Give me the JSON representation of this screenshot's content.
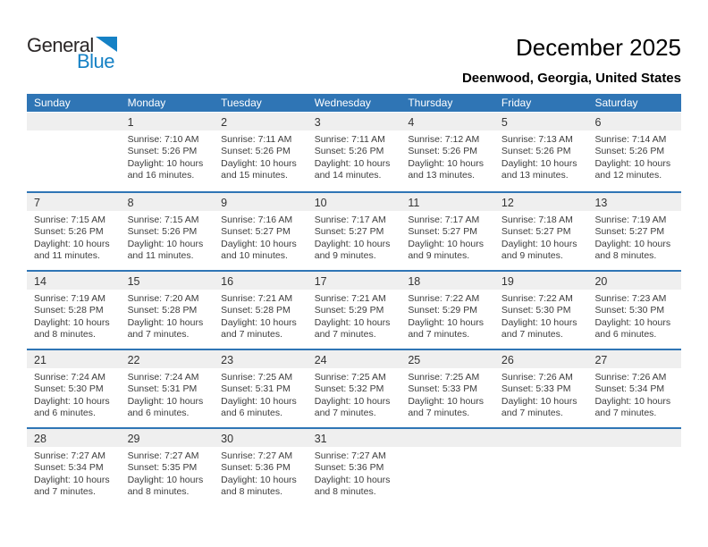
{
  "logo": {
    "general": "General",
    "blue": "Blue",
    "triangle_icon": "blue-flag-triangle"
  },
  "header": {
    "title": "December 2025",
    "subtitle": "Deenwood, Georgia, United States"
  },
  "colors": {
    "header_blue": "#2F75B5",
    "accent_blue": "#1581C5",
    "band_gray": "#EFEFEF",
    "day_number": "#333333",
    "detail_text": "#3D3D3D"
  },
  "weekdays": [
    "Sunday",
    "Monday",
    "Tuesday",
    "Wednesday",
    "Thursday",
    "Friday",
    "Saturday"
  ],
  "weeks": [
    {
      "days": [
        {
          "num": "",
          "lines": [
            "",
            "",
            "",
            ""
          ]
        },
        {
          "num": "1",
          "lines": [
            "Sunrise: 7:10 AM",
            "Sunset: 5:26 PM",
            "Daylight: 10 hours",
            "and 16 minutes."
          ]
        },
        {
          "num": "2",
          "lines": [
            "Sunrise: 7:11 AM",
            "Sunset: 5:26 PM",
            "Daylight: 10 hours",
            "and 15 minutes."
          ]
        },
        {
          "num": "3",
          "lines": [
            "Sunrise: 7:11 AM",
            "Sunset: 5:26 PM",
            "Daylight: 10 hours",
            "and 14 minutes."
          ]
        },
        {
          "num": "4",
          "lines": [
            "Sunrise: 7:12 AM",
            "Sunset: 5:26 PM",
            "Daylight: 10 hours",
            "and 13 minutes."
          ]
        },
        {
          "num": "5",
          "lines": [
            "Sunrise: 7:13 AM",
            "Sunset: 5:26 PM",
            "Daylight: 10 hours",
            "and 13 minutes."
          ]
        },
        {
          "num": "6",
          "lines": [
            "Sunrise: 7:14 AM",
            "Sunset: 5:26 PM",
            "Daylight: 10 hours",
            "and 12 minutes."
          ]
        }
      ]
    },
    {
      "days": [
        {
          "num": "7",
          "lines": [
            "Sunrise: 7:15 AM",
            "Sunset: 5:26 PM",
            "Daylight: 10 hours",
            "and 11 minutes."
          ]
        },
        {
          "num": "8",
          "lines": [
            "Sunrise: 7:15 AM",
            "Sunset: 5:26 PM",
            "Daylight: 10 hours",
            "and 11 minutes."
          ]
        },
        {
          "num": "9",
          "lines": [
            "Sunrise: 7:16 AM",
            "Sunset: 5:27 PM",
            "Daylight: 10 hours",
            "and 10 minutes."
          ]
        },
        {
          "num": "10",
          "lines": [
            "Sunrise: 7:17 AM",
            "Sunset: 5:27 PM",
            "Daylight: 10 hours",
            "and 9 minutes."
          ]
        },
        {
          "num": "11",
          "lines": [
            "Sunrise: 7:17 AM",
            "Sunset: 5:27 PM",
            "Daylight: 10 hours",
            "and 9 minutes."
          ]
        },
        {
          "num": "12",
          "lines": [
            "Sunrise: 7:18 AM",
            "Sunset: 5:27 PM",
            "Daylight: 10 hours",
            "and 9 minutes."
          ]
        },
        {
          "num": "13",
          "lines": [
            "Sunrise: 7:19 AM",
            "Sunset: 5:27 PM",
            "Daylight: 10 hours",
            "and 8 minutes."
          ]
        }
      ]
    },
    {
      "days": [
        {
          "num": "14",
          "lines": [
            "Sunrise: 7:19 AM",
            "Sunset: 5:28 PM",
            "Daylight: 10 hours",
            "and 8 minutes."
          ]
        },
        {
          "num": "15",
          "lines": [
            "Sunrise: 7:20 AM",
            "Sunset: 5:28 PM",
            "Daylight: 10 hours",
            "and 7 minutes."
          ]
        },
        {
          "num": "16",
          "lines": [
            "Sunrise: 7:21 AM",
            "Sunset: 5:28 PM",
            "Daylight: 10 hours",
            "and 7 minutes."
          ]
        },
        {
          "num": "17",
          "lines": [
            "Sunrise: 7:21 AM",
            "Sunset: 5:29 PM",
            "Daylight: 10 hours",
            "and 7 minutes."
          ]
        },
        {
          "num": "18",
          "lines": [
            "Sunrise: 7:22 AM",
            "Sunset: 5:29 PM",
            "Daylight: 10 hours",
            "and 7 minutes."
          ]
        },
        {
          "num": "19",
          "lines": [
            "Sunrise: 7:22 AM",
            "Sunset: 5:30 PM",
            "Daylight: 10 hours",
            "and 7 minutes."
          ]
        },
        {
          "num": "20",
          "lines": [
            "Sunrise: 7:23 AM",
            "Sunset: 5:30 PM",
            "Daylight: 10 hours",
            "and 6 minutes."
          ]
        }
      ]
    },
    {
      "days": [
        {
          "num": "21",
          "lines": [
            "Sunrise: 7:24 AM",
            "Sunset: 5:30 PM",
            "Daylight: 10 hours",
            "and 6 minutes."
          ]
        },
        {
          "num": "22",
          "lines": [
            "Sunrise: 7:24 AM",
            "Sunset: 5:31 PM",
            "Daylight: 10 hours",
            "and 6 minutes."
          ]
        },
        {
          "num": "23",
          "lines": [
            "Sunrise: 7:25 AM",
            "Sunset: 5:31 PM",
            "Daylight: 10 hours",
            "and 6 minutes."
          ]
        },
        {
          "num": "24",
          "lines": [
            "Sunrise: 7:25 AM",
            "Sunset: 5:32 PM",
            "Daylight: 10 hours",
            "and 7 minutes."
          ]
        },
        {
          "num": "25",
          "lines": [
            "Sunrise: 7:25 AM",
            "Sunset: 5:33 PM",
            "Daylight: 10 hours",
            "and 7 minutes."
          ]
        },
        {
          "num": "26",
          "lines": [
            "Sunrise: 7:26 AM",
            "Sunset: 5:33 PM",
            "Daylight: 10 hours",
            "and 7 minutes."
          ]
        },
        {
          "num": "27",
          "lines": [
            "Sunrise: 7:26 AM",
            "Sunset: 5:34 PM",
            "Daylight: 10 hours",
            "and 7 minutes."
          ]
        }
      ]
    },
    {
      "days": [
        {
          "num": "28",
          "lines": [
            "Sunrise: 7:27 AM",
            "Sunset: 5:34 PM",
            "Daylight: 10 hours",
            "and 7 minutes."
          ]
        },
        {
          "num": "29",
          "lines": [
            "Sunrise: 7:27 AM",
            "Sunset: 5:35 PM",
            "Daylight: 10 hours",
            "and 8 minutes."
          ]
        },
        {
          "num": "30",
          "lines": [
            "Sunrise: 7:27 AM",
            "Sunset: 5:36 PM",
            "Daylight: 10 hours",
            "and 8 minutes."
          ]
        },
        {
          "num": "31",
          "lines": [
            "Sunrise: 7:27 AM",
            "Sunset: 5:36 PM",
            "Daylight: 10 hours",
            "and 8 minutes."
          ]
        },
        {
          "num": "",
          "lines": [
            "",
            "",
            "",
            ""
          ]
        },
        {
          "num": "",
          "lines": [
            "",
            "",
            "",
            ""
          ]
        },
        {
          "num": "",
          "lines": [
            "",
            "",
            "",
            ""
          ]
        }
      ]
    }
  ]
}
